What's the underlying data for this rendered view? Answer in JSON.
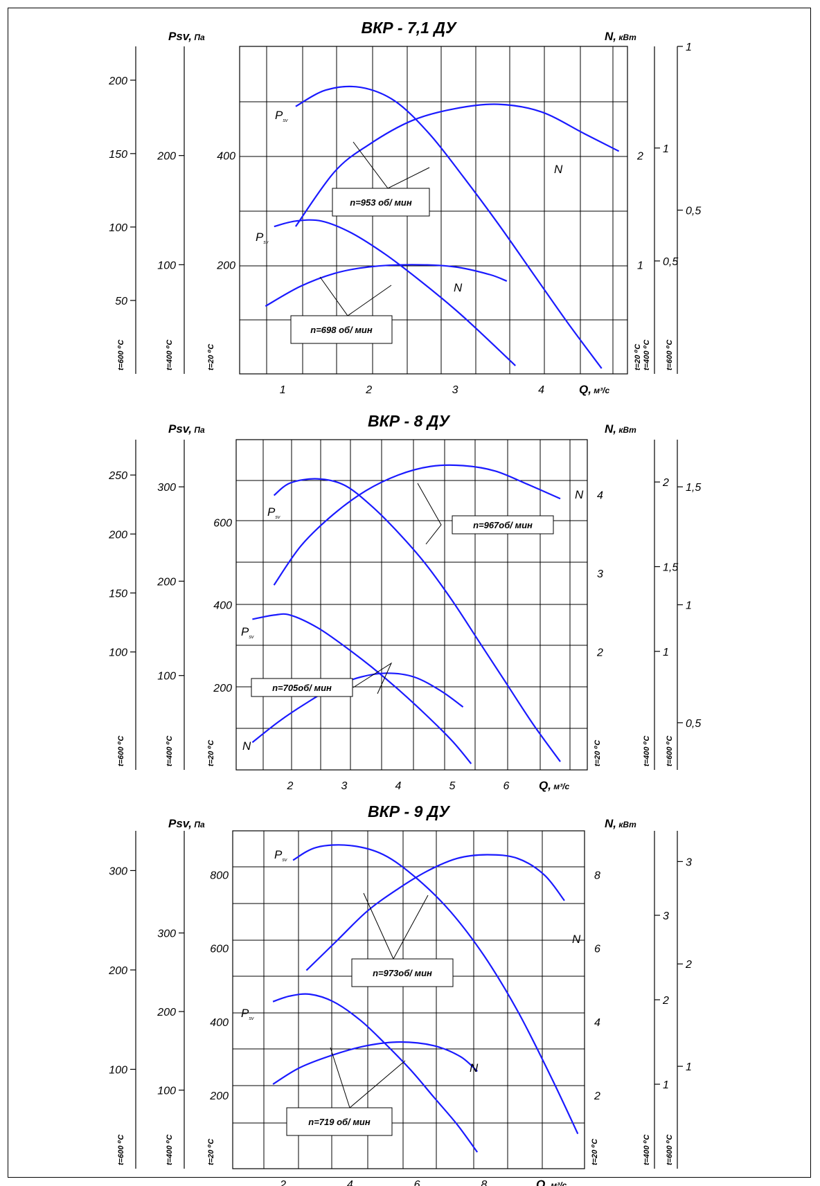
{
  "chart_data": [
    {
      "type": "line",
      "title": "ВКР - 7,1 ДУ",
      "pressure_label": "Psv, Па",
      "power_label": "N, кВт",
      "q_label": "Q, м³/с",
      "x_ticks": [
        1,
        2,
        3,
        4
      ],
      "xlim": [
        0.5,
        5.0
      ],
      "pressure_axes": [
        {
          "temp": "t=600 ⁰С",
          "ticks": [
            50,
            100,
            150,
            200
          ],
          "ylim": [
            0,
            223
          ]
        },
        {
          "temp": "t=400 ⁰С",
          "ticks": [
            100,
            200
          ],
          "ylim": [
            0,
            300
          ]
        },
        {
          "temp": "t=20 ⁰С",
          "ticks": [
            200,
            400
          ],
          "ylim": [
            0,
            600
          ]
        }
      ],
      "power_axes": [
        {
          "temp": "t=20 ⁰С",
          "ticks": [
            1,
            2
          ],
          "ylim": [
            0,
            3.0
          ]
        },
        {
          "temp": "t=400 ⁰С",
          "ticks": [
            0.5,
            1
          ],
          "ylim": [
            0,
            1.45
          ]
        },
        {
          "temp": "t=600 ⁰С",
          "ticks": [
            0.5,
            1
          ],
          "ylim": [
            0,
            1.0
          ]
        }
      ],
      "curves": [
        {
          "label": "Psv",
          "rpm": "n=953 об/ мин",
          "axis": "pressure",
          "points": [
            [
              1.15,
              490
            ],
            [
              1.5,
              520
            ],
            [
              1.9,
              525
            ],
            [
              2.3,
              500
            ],
            [
              2.7,
              440
            ],
            [
              3.1,
              360
            ],
            [
              3.5,
              275
            ],
            [
              3.9,
              185
            ],
            [
              4.3,
              95
            ],
            [
              4.7,
              10
            ]
          ]
        },
        {
          "label": "N",
          "rpm": "n=953 об/ мин",
          "axis": "power",
          "points": [
            [
              1.15,
              1.35
            ],
            [
              1.6,
              1.85
            ],
            [
              2.0,
              2.1
            ],
            [
              2.5,
              2.32
            ],
            [
              3.0,
              2.43
            ],
            [
              3.5,
              2.47
            ],
            [
              4.0,
              2.4
            ],
            [
              4.5,
              2.2
            ],
            [
              4.9,
              2.04
            ]
          ]
        },
        {
          "label": "Psv",
          "rpm": "n=698 об/ мин",
          "axis": "pressure",
          "points": [
            [
              0.9,
              270
            ],
            [
              1.15,
              280
            ],
            [
              1.45,
              280
            ],
            [
              1.8,
              258
            ],
            [
              2.2,
              218
            ],
            [
              2.6,
              170
            ],
            [
              3.0,
              118
            ],
            [
              3.3,
              75
            ],
            [
              3.7,
              15
            ]
          ]
        },
        {
          "label": "N",
          "rpm": "n=698 об/ мин",
          "axis": "power",
          "points": [
            [
              0.8,
              0.62
            ],
            [
              1.2,
              0.8
            ],
            [
              1.6,
              0.92
            ],
            [
              2.0,
              0.98
            ],
            [
              2.5,
              1.0
            ],
            [
              3.0,
              0.98
            ],
            [
              3.4,
              0.91
            ],
            [
              3.6,
              0.85
            ]
          ]
        }
      ],
      "annotations": [
        "n=953 об/ мин",
        "n=698 об/ мин"
      ],
      "grid": true
    },
    {
      "type": "line",
      "title": "ВКР - 8 ДУ",
      "pressure_label": "Psv, Па",
      "power_label": "N, кВт",
      "q_label": "Q, м³/с",
      "x_ticks": [
        2,
        3,
        4,
        5,
        6
      ],
      "xlim": [
        1.0,
        7.5
      ],
      "pressure_axes": [
        {
          "temp": "t=600 ⁰С",
          "ticks": [
            100,
            150,
            200,
            250
          ],
          "ylim": [
            0,
            280
          ]
        },
        {
          "temp": "t=400 ⁰С",
          "ticks": [
            100,
            200,
            300
          ],
          "ylim": [
            0,
            350
          ]
        },
        {
          "temp": "t=20 ⁰С",
          "ticks": [
            200,
            400,
            600
          ],
          "ylim": [
            0,
            800
          ]
        }
      ],
      "power_axes": [
        {
          "temp": "t=20 ⁰С",
          "ticks": [
            2,
            3,
            4
          ],
          "ylim": [
            0.5,
            4.7
          ]
        },
        {
          "temp": "t=400 ⁰С",
          "ticks": [
            1,
            1.5,
            2
          ],
          "ylim": [
            0.3,
            2.25
          ]
        },
        {
          "temp": "t=600 ⁰С",
          "ticks": [
            0.5,
            1,
            1.5
          ],
          "ylim": [
            0.3,
            1.7
          ]
        }
      ],
      "curves": [
        {
          "label": "Psv",
          "rpm": "n=967об/ мин",
          "axis": "pressure",
          "points": [
            [
              1.7,
              665
            ],
            [
              2.0,
              695
            ],
            [
              2.5,
              705
            ],
            [
              3.0,
              690
            ],
            [
              3.5,
              640
            ],
            [
              4.0,
              575
            ],
            [
              4.5,
              500
            ],
            [
              5.0,
              410
            ],
            [
              5.5,
              310
            ],
            [
              6.0,
              210
            ],
            [
              6.5,
              110
            ],
            [
              7.0,
              20
            ]
          ]
        },
        {
          "label": "N",
          "rpm": "n=967об/ мин",
          "axis": "power",
          "points": [
            [
              1.7,
              2.85
            ],
            [
              2.2,
              3.35
            ],
            [
              2.8,
              3.75
            ],
            [
              3.4,
              4.05
            ],
            [
              4.0,
              4.25
            ],
            [
              4.6,
              4.36
            ],
            [
              5.2,
              4.37
            ],
            [
              5.8,
              4.3
            ],
            [
              6.4,
              4.13
            ],
            [
              7.0,
              3.95
            ]
          ]
        },
        {
          "label": "Psv",
          "rpm": "n=705об/ мин",
          "axis": "pressure",
          "points": [
            [
              1.3,
              365
            ],
            [
              1.7,
              375
            ],
            [
              2.0,
              375
            ],
            [
              2.5,
              345
            ],
            [
              3.0,
              300
            ],
            [
              3.5,
              250
            ],
            [
              4.0,
              195
            ],
            [
              4.5,
              135
            ],
            [
              5.0,
              70
            ],
            [
              5.35,
              15
            ]
          ]
        },
        {
          "label": "N",
          "rpm": "n=705об/ мин",
          "axis": "power",
          "points": [
            [
              1.3,
              0.85
            ],
            [
              1.8,
              1.12
            ],
            [
              2.3,
              1.35
            ],
            [
              2.8,
              1.55
            ],
            [
              3.3,
              1.68
            ],
            [
              3.8,
              1.73
            ],
            [
              4.3,
              1.68
            ],
            [
              4.8,
              1.5
            ],
            [
              5.2,
              1.3
            ]
          ]
        }
      ],
      "annotations": [
        "n=967об/ мин",
        "n=705об/ мин"
      ],
      "grid": true
    },
    {
      "type": "line",
      "title": "ВКР - 9 ДУ",
      "pressure_label": "Psv, Па",
      "power_label": "N, кВт",
      "q_label": "Q, м³/с",
      "x_ticks": [
        2,
        4,
        6,
        8
      ],
      "xlim": [
        0.5,
        11.0
      ],
      "pressure_axes": [
        {
          "temp": "t=600 ⁰С",
          "ticks": [
            100,
            200,
            300
          ],
          "ylim": [
            0,
            340
          ]
        },
        {
          "temp": "t=400 ⁰С",
          "ticks": [
            100,
            200,
            300
          ],
          "ylim": [
            0,
            430
          ]
        },
        {
          "temp": "t=20 ⁰С",
          "ticks": [
            200,
            400,
            600,
            800
          ],
          "ylim": [
            0,
            920
          ]
        }
      ],
      "power_axes": [
        {
          "temp": "t=20 ⁰С",
          "ticks": [
            2,
            4,
            6,
            8
          ],
          "ylim": [
            0,
            9.2
          ]
        },
        {
          "temp": "t=400 ⁰С",
          "ticks": [
            1,
            2,
            3
          ],
          "ylim": [
            0,
            4.0
          ]
        },
        {
          "temp": "t=600 ⁰С",
          "ticks": [
            1,
            2,
            3
          ],
          "ylim": [
            0,
            3.3
          ]
        }
      ],
      "curves": [
        {
          "label": "Psv",
          "rpm": "n=973об/ мин",
          "axis": "pressure",
          "points": [
            [
              2.3,
              840
            ],
            [
              3.0,
              875
            ],
            [
              4.0,
              880
            ],
            [
              5.0,
              855
            ],
            [
              6.0,
              790
            ],
            [
              7.0,
              700
            ],
            [
              8.0,
              580
            ],
            [
              9.0,
              430
            ],
            [
              10.0,
              250
            ],
            [
              10.8,
              95
            ]
          ]
        },
        {
          "label": "N",
          "rpm": "n=973об/ мин",
          "axis": "power",
          "points": [
            [
              2.7,
              5.4
            ],
            [
              3.6,
              6.2
            ],
            [
              4.5,
              7.0
            ],
            [
              5.4,
              7.6
            ],
            [
              6.3,
              8.1
            ],
            [
              7.2,
              8.45
            ],
            [
              8.1,
              8.55
            ],
            [
              9.0,
              8.45
            ],
            [
              9.8,
              8.0
            ],
            [
              10.4,
              7.3
            ]
          ]
        },
        {
          "label": "Psv",
          "rpm": "n=719 об/ мин",
          "axis": "pressure",
          "points": [
            [
              1.7,
              455
            ],
            [
              2.2,
              470
            ],
            [
              2.8,
              475
            ],
            [
              3.5,
              455
            ],
            [
              4.3,
              405
            ],
            [
              5.0,
              345
            ],
            [
              5.8,
              270
            ],
            [
              6.5,
              195
            ],
            [
              7.2,
              120
            ],
            [
              7.8,
              45
            ]
          ]
        },
        {
          "label": "N",
          "rpm": "n=719 об/ мин",
          "axis": "power",
          "points": [
            [
              1.7,
              2.3
            ],
            [
              2.5,
              2.75
            ],
            [
              3.5,
              3.1
            ],
            [
              4.5,
              3.35
            ],
            [
              5.5,
              3.45
            ],
            [
              6.5,
              3.35
            ],
            [
              7.3,
              3.05
            ],
            [
              7.8,
              2.65
            ]
          ]
        }
      ],
      "annotations": [
        "n=973об/ мин",
        "n=719 об/ мин"
      ],
      "grid": true
    }
  ]
}
